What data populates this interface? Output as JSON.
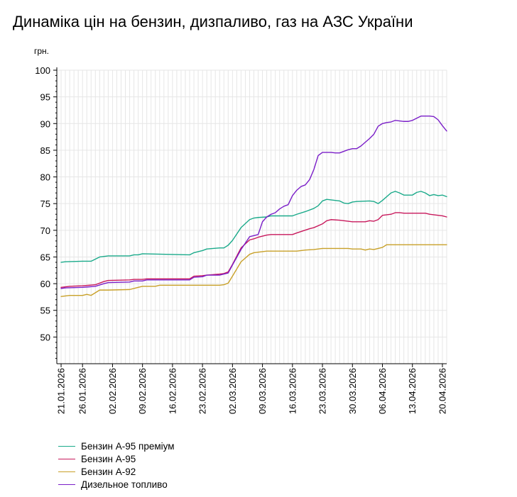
{
  "chart_data": {
    "type": "line",
    "title": "Динаміка цін на бензин, дизпаливо, газ на АЗС України",
    "ylabel": "грн.",
    "ylim": [
      45,
      100
    ],
    "yticks": [
      50,
      55,
      60,
      65,
      70,
      75,
      80,
      85,
      90,
      95,
      100
    ],
    "xlim": [
      "2026-01-20",
      "2026-04-21"
    ],
    "xticks": [
      "21.01.2026",
      "26.01.2026",
      "02.02.2026",
      "09.02.2026",
      "16.02.2026",
      "23.02.2026",
      "02.03.2026",
      "09.03.2026",
      "16.03.2026",
      "23.03.2026",
      "30.03.2026",
      "06.04.2026",
      "13.04.2026",
      "20.04.2026"
    ],
    "grid": true,
    "legend_position": "bottom",
    "series": [
      {
        "name": "Бензин А-95 преміум",
        "color": "#1aaa8a",
        "x": [
          "2026-01-21",
          "2026-01-22",
          "2026-01-26",
          "2026-01-28",
          "2026-01-29",
          "2026-01-30",
          "2026-02-01",
          "2026-02-06",
          "2026-02-07",
          "2026-02-08",
          "2026-02-09",
          "2026-02-20",
          "2026-02-21",
          "2026-02-23",
          "2026-02-24",
          "2026-02-27",
          "2026-02-28",
          "2026-03-01",
          "2026-03-02",
          "2026-03-04",
          "2026-03-06",
          "2026-03-07",
          "2026-03-08",
          "2026-03-10",
          "2026-03-11",
          "2026-03-16",
          "2026-03-17",
          "2026-03-19",
          "2026-03-21",
          "2026-03-22",
          "2026-03-23",
          "2026-03-24",
          "2026-03-25",
          "2026-03-27",
          "2026-03-28",
          "2026-03-29",
          "2026-03-30",
          "2026-03-31",
          "2026-04-03",
          "2026-04-04",
          "2026-04-05",
          "2026-04-06",
          "2026-04-08",
          "2026-04-09",
          "2026-04-10",
          "2026-04-11",
          "2026-04-13",
          "2026-04-14",
          "2026-04-15",
          "2026-04-16",
          "2026-04-17",
          "2026-04-18",
          "2026-04-19",
          "2026-04-20",
          "2026-04-21"
        ],
        "y": [
          64.0,
          64.1,
          64.2,
          64.2,
          64.6,
          65.0,
          65.2,
          65.2,
          65.4,
          65.4,
          65.6,
          65.4,
          65.8,
          66.2,
          66.5,
          66.7,
          66.7,
          67.2,
          68.1,
          70.5,
          72.0,
          72.3,
          72.4,
          72.5,
          72.7,
          72.7,
          73.0,
          73.5,
          74.1,
          74.6,
          75.5,
          75.8,
          75.7,
          75.5,
          75.1,
          75.0,
          75.3,
          75.4,
          75.5,
          75.4,
          75.0,
          75.6,
          77.0,
          77.3,
          77.0,
          76.6,
          76.6,
          77.1,
          77.3,
          77.0,
          76.5,
          76.7,
          76.5,
          76.6,
          76.3
        ]
      },
      {
        "name": "Бензин А-95",
        "color": "#c8195c",
        "x": [
          "2026-01-21",
          "2026-01-22",
          "2026-01-23",
          "2026-01-26",
          "2026-01-29",
          "2026-01-31",
          "2026-02-01",
          "2026-02-06",
          "2026-02-07",
          "2026-02-09",
          "2026-02-10",
          "2026-02-20",
          "2026-02-21",
          "2026-02-23",
          "2026-02-24",
          "2026-02-27",
          "2026-02-28",
          "2026-03-01",
          "2026-03-02",
          "2026-03-04",
          "2026-03-06",
          "2026-03-07",
          "2026-03-08",
          "2026-03-10",
          "2026-03-11",
          "2026-03-16",
          "2026-03-17",
          "2026-03-20",
          "2026-03-21",
          "2026-03-23",
          "2026-03-24",
          "2026-03-25",
          "2026-03-27",
          "2026-03-28",
          "2026-03-29",
          "2026-03-30",
          "2026-04-02",
          "2026-04-03",
          "2026-04-04",
          "2026-04-05",
          "2026-04-06",
          "2026-04-08",
          "2026-04-09",
          "2026-04-10",
          "2026-04-11",
          "2026-04-12",
          "2026-04-16",
          "2026-04-17",
          "2026-04-18",
          "2026-04-19",
          "2026-04-20",
          "2026-04-21"
        ],
        "y": [
          59.3,
          59.4,
          59.5,
          59.6,
          59.8,
          60.4,
          60.6,
          60.7,
          60.8,
          60.8,
          60.9,
          60.9,
          61.4,
          61.5,
          61.6,
          61.8,
          61.9,
          62.2,
          63.6,
          66.7,
          68.2,
          68.4,
          68.7,
          69.1,
          69.2,
          69.2,
          69.5,
          70.3,
          70.5,
          71.2,
          71.8,
          72.0,
          71.9,
          71.8,
          71.7,
          71.6,
          71.6,
          71.8,
          71.7,
          72.0,
          72.8,
          73.0,
          73.3,
          73.3,
          73.2,
          73.2,
          73.2,
          73.0,
          72.9,
          72.8,
          72.7,
          72.5
        ]
      },
      {
        "name": "Бензин А-92",
        "color": "#c8a028",
        "x": [
          "2026-01-21",
          "2026-01-22",
          "2026-01-23",
          "2026-01-26",
          "2026-01-27",
          "2026-01-28",
          "2026-01-29",
          "2026-01-30",
          "2026-02-01",
          "2026-02-06",
          "2026-02-08",
          "2026-02-09",
          "2026-02-12",
          "2026-02-13",
          "2026-02-27",
          "2026-02-28",
          "2026-03-01",
          "2026-03-02",
          "2026-03-04",
          "2026-03-06",
          "2026-03-07",
          "2026-03-10",
          "2026-03-17",
          "2026-03-19",
          "2026-03-21",
          "2026-03-22",
          "2026-03-23",
          "2026-03-29",
          "2026-03-30",
          "2026-04-01",
          "2026-04-02",
          "2026-04-03",
          "2026-04-04",
          "2026-04-05",
          "2026-04-06",
          "2026-04-07",
          "2026-04-21"
        ],
        "y": [
          57.6,
          57.7,
          57.8,
          57.8,
          58.0,
          57.8,
          58.3,
          58.8,
          58.8,
          58.9,
          59.3,
          59.5,
          59.5,
          59.7,
          59.7,
          59.8,
          60.1,
          61.4,
          64.1,
          65.5,
          65.8,
          66.1,
          66.1,
          66.3,
          66.4,
          66.5,
          66.6,
          66.6,
          66.5,
          66.5,
          66.3,
          66.5,
          66.4,
          66.6,
          66.8,
          67.3,
          67.3
        ]
      },
      {
        "name": "Дизельное топливо",
        "color": "#7a1ec8",
        "x": [
          "2026-01-21",
          "2026-01-22",
          "2026-01-26",
          "2026-01-29",
          "2026-01-31",
          "2026-02-01",
          "2026-02-06",
          "2026-02-07",
          "2026-02-09",
          "2026-02-10",
          "2026-02-20",
          "2026-02-21",
          "2026-02-23",
          "2026-02-24",
          "2026-02-27",
          "2026-02-28",
          "2026-03-01",
          "2026-03-02",
          "2026-03-04",
          "2026-03-06",
          "2026-03-07",
          "2026-03-08",
          "2026-03-09",
          "2026-03-10",
          "2026-03-11",
          "2026-03-12",
          "2026-03-13",
          "2026-03-14",
          "2026-03-15",
          "2026-03-16",
          "2026-03-17",
          "2026-03-18",
          "2026-03-19",
          "2026-03-20",
          "2026-03-21",
          "2026-03-22",
          "2026-03-23",
          "2026-03-24",
          "2026-03-25",
          "2026-03-26",
          "2026-03-27",
          "2026-03-28",
          "2026-03-29",
          "2026-03-30",
          "2026-03-31",
          "2026-04-01",
          "2026-04-02",
          "2026-04-03",
          "2026-04-04",
          "2026-04-05",
          "2026-04-06",
          "2026-04-07",
          "2026-04-08",
          "2026-04-09",
          "2026-04-10",
          "2026-04-11",
          "2026-04-12",
          "2026-04-13",
          "2026-04-14",
          "2026-04-15",
          "2026-04-16",
          "2026-04-17",
          "2026-04-18",
          "2026-04-19",
          "2026-04-20",
          "2026-04-21"
        ],
        "y": [
          59.1,
          59.2,
          59.3,
          59.5,
          60.0,
          60.2,
          60.3,
          60.5,
          60.5,
          60.7,
          60.7,
          61.2,
          61.3,
          61.6,
          61.6,
          61.8,
          62.0,
          63.5,
          66.4,
          68.8,
          69.0,
          69.2,
          71.6,
          72.5,
          73.0,
          73.3,
          74.0,
          74.5,
          74.8,
          76.5,
          77.5,
          78.2,
          78.5,
          79.5,
          81.4,
          84.0,
          84.6,
          84.6,
          84.6,
          84.5,
          84.5,
          84.8,
          85.1,
          85.3,
          85.3,
          85.8,
          86.5,
          87.2,
          88.0,
          89.5,
          90.0,
          90.2,
          90.3,
          90.6,
          90.5,
          90.4,
          90.4,
          90.6,
          91.0,
          91.4,
          91.4,
          91.4,
          91.3,
          90.7,
          89.6,
          88.6
        ]
      }
    ]
  }
}
